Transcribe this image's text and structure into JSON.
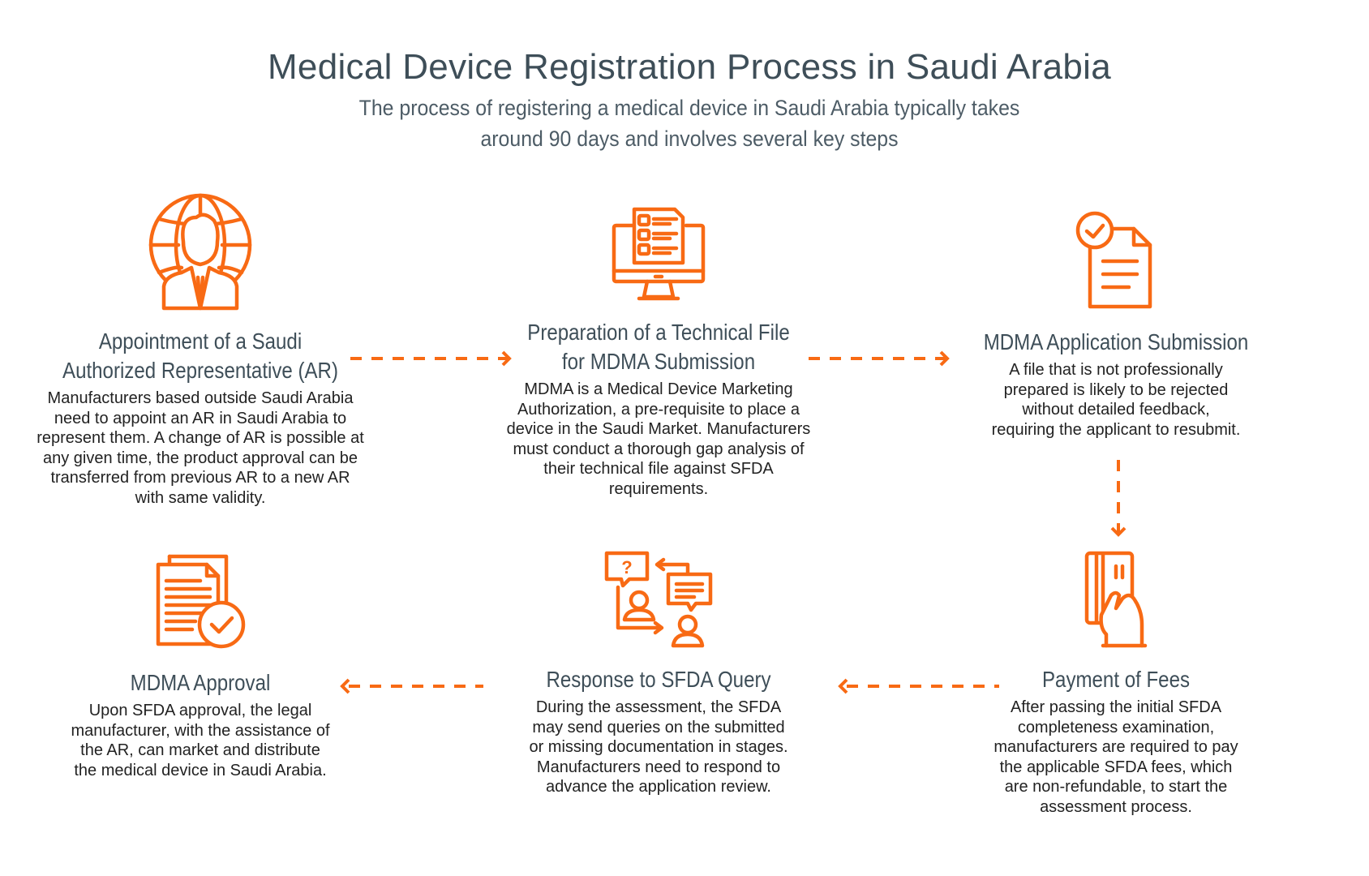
{
  "title": "Medical Device Registration Process in Saudi Arabia",
  "subtitle_lines": [
    "The process of registering a medical device in Saudi Arabia typically takes",
    "around 90 days and involves several key steps"
  ],
  "colors": {
    "accent": "#f86a14",
    "heading": "#3e4e58",
    "body": "#222222"
  },
  "steps": [
    {
      "icon": "globe-person-icon",
      "heading_lines": [
        "Appointment of a Saudi",
        "Authorized Representative (AR)"
      ],
      "body_lines": [
        "Manufacturers based outside Saudi Arabia",
        "need to appoint an AR in Saudi Arabia to",
        "represent them. A change of AR is possible at",
        "any given time, the product approval can be",
        "transferred from previous AR to a new AR",
        "with same validity."
      ]
    },
    {
      "icon": "monitor-checklist-icon",
      "heading_lines": [
        "Preparation of a Technical File",
        "for MDMA Submission"
      ],
      "body_lines": [
        "MDMA is a Medical Device Marketing",
        "Authorization, a pre-requisite to place a",
        "device in the Saudi Market. Manufacturers",
        "must conduct a thorough gap analysis of",
        "their technical file against SFDA",
        "requirements."
      ]
    },
    {
      "icon": "document-check-icon",
      "heading_lines": [
        "MDMA Application Submission"
      ],
      "body_lines": [
        "A file that is not professionally",
        "prepared is likely to be rejected",
        "without detailed feedback,",
        "requiring the applicant to resubmit."
      ]
    },
    {
      "icon": "card-payment-icon",
      "heading_lines": [
        "Payment of Fees"
      ],
      "body_lines": [
        "After passing the initial SFDA",
        "completeness examination,",
        "manufacturers are required to pay",
        "the applicable SFDA fees, which",
        "are non-refundable, to start the",
        "assessment process."
      ]
    },
    {
      "icon": "query-response-icon",
      "heading_lines": [
        "Response to SFDA Query"
      ],
      "body_lines": [
        "During the assessment, the SFDA",
        "may send queries on the submitted",
        "or missing documentation in stages.",
        "Manufacturers need to respond to",
        "advance the application review."
      ]
    },
    {
      "icon": "approved-document-icon",
      "heading_lines": [
        "MDMA Approval"
      ],
      "body_lines": [
        "Upon SFDA approval, the legal",
        "manufacturer, with the assistance of",
        "the AR, can market and distribute",
        "the medical device in Saudi Arabia."
      ]
    }
  ]
}
